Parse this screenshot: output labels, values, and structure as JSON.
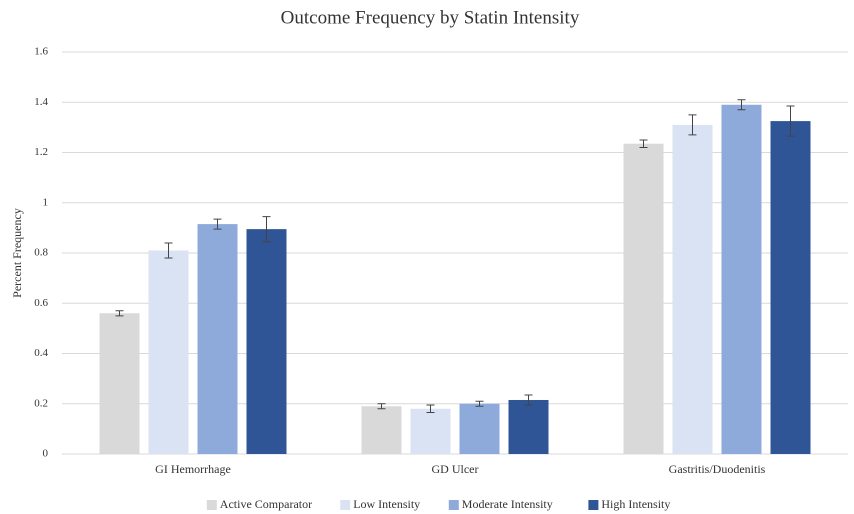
{
  "chart_data": {
    "type": "bar",
    "title": "Outcome Frequency by Statin Intensity",
    "y_label": "Percent Frequency",
    "categories": [
      "GI Hemorrhage",
      "GD Ulcer",
      "Gastritis/Duodenitis"
    ],
    "series": [
      {
        "name": "Active Comparator",
        "color": "#d9d9d9",
        "values": [
          0.56,
          0.19,
          1.235
        ],
        "errors": [
          0.01,
          0.01,
          0.015
        ]
      },
      {
        "name": "Low Intensity",
        "color": "#dae3f3",
        "values": [
          0.81,
          0.18,
          1.31
        ],
        "errors": [
          0.03,
          0.015,
          0.04
        ]
      },
      {
        "name": "Moderate Intensity",
        "color": "#8eaadb",
        "values": [
          0.915,
          0.2,
          1.39
        ],
        "errors": [
          0.02,
          0.01,
          0.02
        ]
      },
      {
        "name": "High Intensity",
        "color": "#2f5597",
        "values": [
          0.895,
          0.215,
          1.325
        ],
        "errors": [
          0.05,
          0.02,
          0.06
        ]
      }
    ],
    "ylim": [
      0,
      1.6
    ],
    "yticks": [
      0,
      0.2,
      0.4,
      0.6,
      0.8,
      1,
      1.2,
      1.4,
      1.6
    ],
    "grid": true,
    "legend": "bottom"
  }
}
